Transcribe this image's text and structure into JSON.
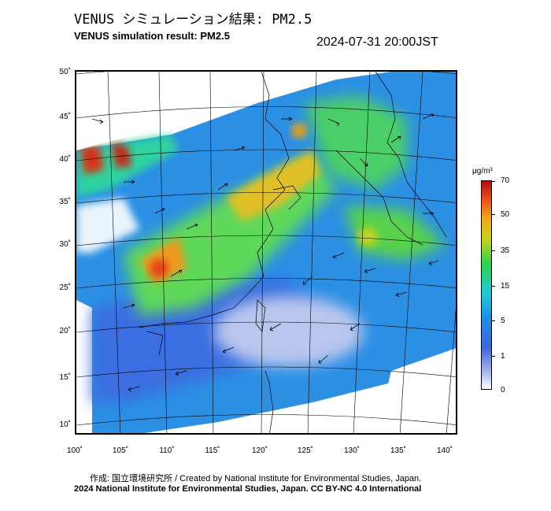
{
  "header": {
    "title_ja": "VENUS シミュレーション結果: PM2.5",
    "title_en": "VENUS simulation result: PM2.5",
    "timestamp": "2024-07-31 20:00JST"
  },
  "axes": {
    "latitude_labels": [
      "50˚",
      "45˚",
      "40˚",
      "35˚",
      "30˚",
      "25˚",
      "20˚",
      "15˚",
      "10˚"
    ],
    "longitude_labels": [
      "100˚",
      "105˚",
      "110˚",
      "115˚",
      "120˚",
      "125˚",
      "130˚",
      "135˚",
      "140˚"
    ]
  },
  "colorbar": {
    "unit": "μg/m³",
    "labels": [
      "70",
      "50",
      "35",
      "15",
      "5",
      "1",
      "0"
    ]
  },
  "footer": {
    "credit": "作成: 国立環境研究所 / Created by National Institute for Environmental Studies, Japan.",
    "copyright": "2024 National Institute for Environmental Studies, Japan. CC BY-NC 4.0 International"
  }
}
